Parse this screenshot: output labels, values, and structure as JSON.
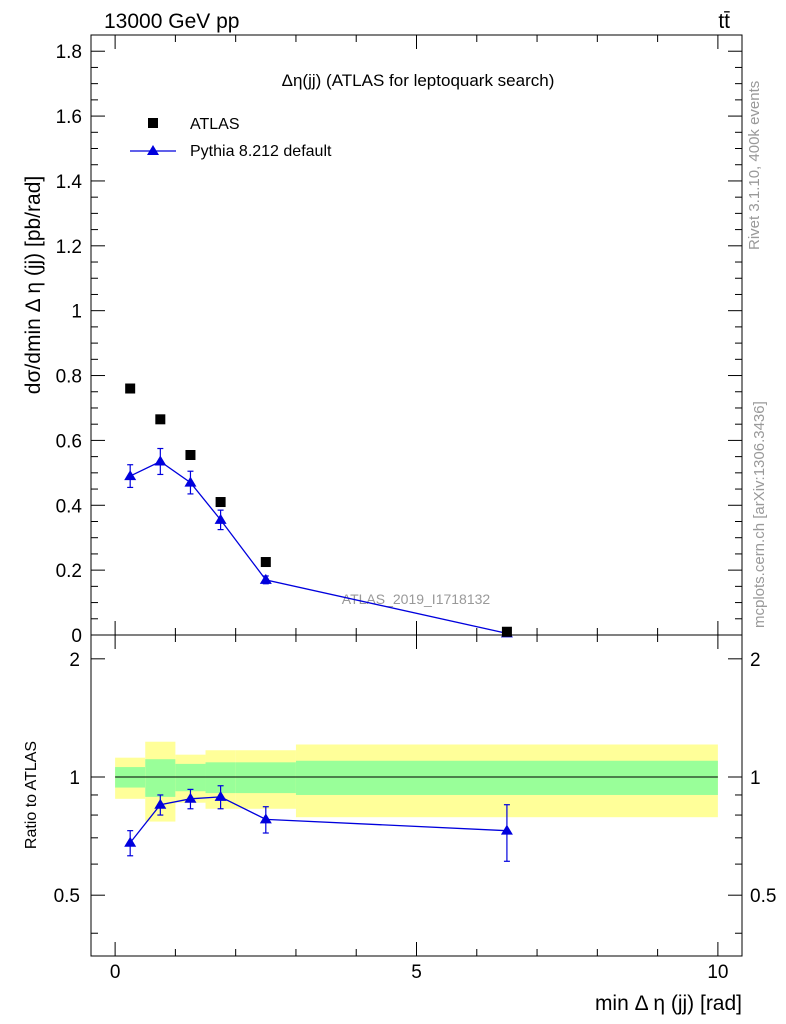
{
  "header": {
    "left": "13000 GeV pp",
    "right": "tt̄"
  },
  "side_text": {
    "rivet": "Rivet 3.1.10,  400k events",
    "mcplots": "mcplots.cern.ch [arXiv:1306.3436]"
  },
  "colors": {
    "atlas": "#000000",
    "pythia": "#0000dd",
    "band_inner": "#99ff99",
    "band_outer": "#ffff99",
    "watermark": "#999999"
  },
  "chart_data": [
    {
      "type": "scatter",
      "title": "Δη(jj) (ATLAS for leptoquark search)",
      "ylabel": "dσ/dmin Δ η (jj) [pb/rad]",
      "watermark": "ATLAS_2019_I1718132",
      "xlim": [
        -0.4,
        10.4
      ],
      "ylim": [
        0,
        1.85
      ],
      "y_ticks": [
        "0",
        "0.2",
        "0.4",
        "0.6",
        "0.8",
        "1",
        "1.2",
        "1.4",
        "1.6",
        "1.8"
      ],
      "y_tick_values": [
        0,
        0.2,
        0.4,
        0.6,
        0.8,
        1.0,
        1.2,
        1.4,
        1.6,
        1.8
      ],
      "legend": [
        {
          "name": "ATLAS",
          "marker": "square"
        },
        {
          "name": "Pythia 8.212 default",
          "marker": "triangle"
        }
      ],
      "series": [
        {
          "name": "ATLAS",
          "x": [
            0.25,
            0.75,
            1.25,
            1.75,
            2.5,
            6.5
          ],
          "y": [
            0.76,
            0.665,
            0.555,
            0.41,
            0.225,
            0.01
          ]
        },
        {
          "name": "Pythia 8.212 default",
          "x": [
            0.25,
            0.75,
            1.25,
            1.75,
            2.5,
            6.5
          ],
          "y": [
            0.49,
            0.535,
            0.47,
            0.355,
            0.17,
            0.005
          ],
          "yerr": [
            0.035,
            0.04,
            0.035,
            0.03,
            0.012,
            0.002
          ]
        }
      ]
    },
    {
      "type": "line",
      "ylabel": "Ratio to ATLAS",
      "xlabel": "min Δ η (jj) [rad]",
      "xlim": [
        -0.4,
        10.4
      ],
      "ylim": [
        0.35,
        2.3
      ],
      "x_ticks": [
        "0",
        "5",
        "10"
      ],
      "x_tick_values": [
        0,
        5,
        10
      ],
      "y_ticks": [
        "0.5",
        "1",
        "2"
      ],
      "y_tick_values": [
        0.5,
        1,
        2
      ],
      "bands": [
        {
          "x0": 0.0,
          "x1": 0.5,
          "inner": [
            0.94,
            1.06
          ],
          "outer": [
            0.88,
            1.12
          ]
        },
        {
          "x0": 0.5,
          "x1": 1.0,
          "inner": [
            0.89,
            1.11
          ],
          "outer": [
            0.77,
            1.23
          ]
        },
        {
          "x0": 1.0,
          "x1": 1.5,
          "inner": [
            0.92,
            1.08
          ],
          "outer": [
            0.86,
            1.14
          ]
        },
        {
          "x0": 1.5,
          "x1": 2.0,
          "inner": [
            0.91,
            1.09
          ],
          "outer": [
            0.83,
            1.17
          ]
        },
        {
          "x0": 2.0,
          "x1": 3.0,
          "inner": [
            0.91,
            1.09
          ],
          "outer": [
            0.83,
            1.17
          ]
        },
        {
          "x0": 3.0,
          "x1": 10.0,
          "inner": [
            0.9,
            1.1
          ],
          "outer": [
            0.79,
            1.21
          ]
        }
      ],
      "series": [
        {
          "name": "Pythia 8.212 default",
          "x": [
            0.25,
            0.75,
            1.25,
            1.75,
            2.5,
            6.5
          ],
          "y": [
            0.68,
            0.85,
            0.88,
            0.89,
            0.78,
            0.73
          ],
          "yerr_low": [
            0.05,
            0.05,
            0.05,
            0.06,
            0.06,
            0.12
          ],
          "yerr_high": [
            0.05,
            0.05,
            0.05,
            0.06,
            0.06,
            0.12
          ]
        }
      ]
    }
  ]
}
